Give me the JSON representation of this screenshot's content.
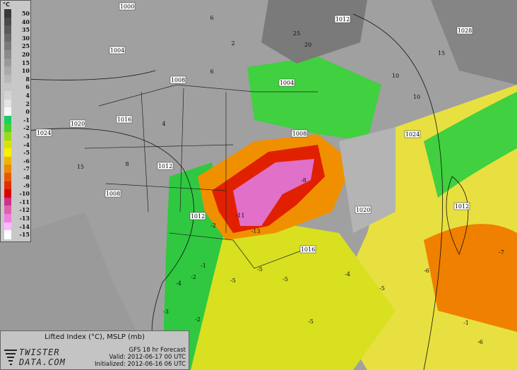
{
  "legend": {
    "unit": "°C",
    "entries": [
      {
        "label": "50",
        "color": "#383838"
      },
      {
        "label": "40",
        "color": "#4a4a4a"
      },
      {
        "label": "35",
        "color": "#5a5a5a"
      },
      {
        "label": "30",
        "color": "#6a6a6a"
      },
      {
        "label": "25",
        "color": "#7a7a7a"
      },
      {
        "label": "20",
        "color": "#8a8a8a"
      },
      {
        "label": "15",
        "color": "#9a9a9a"
      },
      {
        "label": "10",
        "color": "#aaaaaa"
      },
      {
        "label": "8",
        "color": "#b8b8b8"
      },
      {
        "label": "6",
        "color": "#c6c6c6"
      },
      {
        "label": "4",
        "color": "#d4d4d4"
      },
      {
        "label": "2",
        "color": "#e4e4e4"
      },
      {
        "label": "0",
        "color": "#f6f6f6"
      },
      {
        "label": "-1",
        "color": "#1ccc66"
      },
      {
        "label": "-2",
        "color": "#44d42c"
      },
      {
        "label": "-3",
        "color": "#9ada18"
      },
      {
        "label": "-4",
        "color": "#d4e400"
      },
      {
        "label": "-5",
        "color": "#f8f000"
      },
      {
        "label": "-6",
        "color": "#f0b400"
      },
      {
        "label": "-7",
        "color": "#f08800"
      },
      {
        "label": "-8",
        "color": "#e85800"
      },
      {
        "label": "-9",
        "color": "#e03000"
      },
      {
        "label": "-10",
        "color": "#dc0000"
      },
      {
        "label": "-11",
        "color": "#d03088"
      },
      {
        "label": "-12",
        "color": "#e060b0"
      },
      {
        "label": "-13",
        "color": "#f080e0"
      },
      {
        "label": "-14",
        "color": "#ffb8ff"
      },
      {
        "label": "-15",
        "color": "#ffffff"
      }
    ]
  },
  "info": {
    "title": "Lifted Index (°C), MSLP (mb)",
    "logo_line1": "TWISTER",
    "logo_line2": "DATA.COM",
    "model": "GFS 18 hr Forecast",
    "valid": "Valid: 2012-06-17 00 UTC",
    "initialized": "Initialized: 2012-06-16 06 UTC"
  },
  "isobar_labels": [
    "1000",
    "1012",
    "1028",
    "1004",
    "1008",
    "1004",
    "1016",
    "1020",
    "1024",
    "1012",
    "1008",
    "1008",
    "1012",
    "1024",
    "1020",
    "1012",
    "1016"
  ],
  "contour_labels": [
    "6",
    "2",
    "25",
    "20",
    "15",
    "10",
    "6",
    "4",
    "15",
    "8",
    "10",
    "-2",
    "-1",
    "-4",
    "-5",
    "-6",
    "-7",
    "-5",
    "-5",
    "-6",
    "-5",
    "-4",
    "-3",
    "-5",
    "-11",
    "-13",
    "-8",
    "-2",
    "-2",
    "-1"
  ]
}
